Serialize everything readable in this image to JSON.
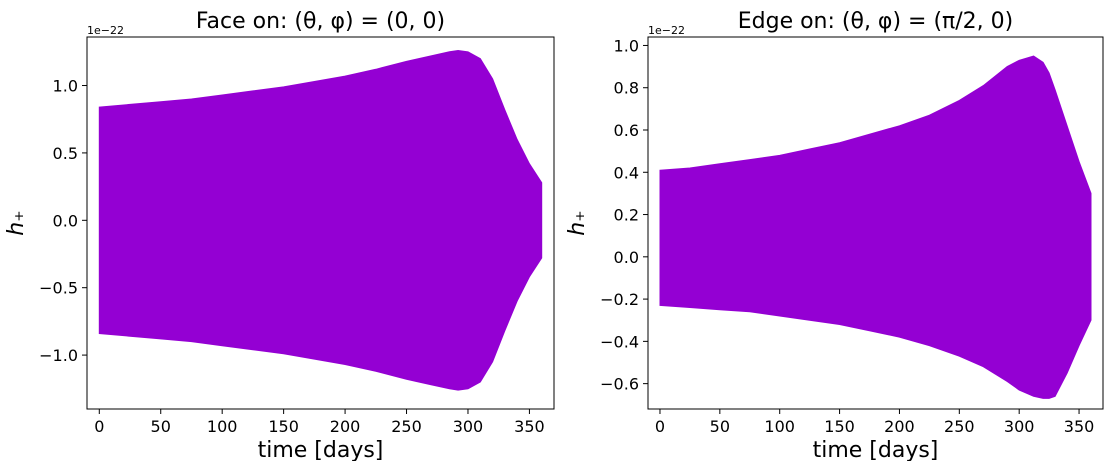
{
  "chart_data": [
    {
      "type": "area",
      "title": "Face on: (θ, φ) = (0, 0)",
      "xlabel": "time [days]",
      "ylabel": "h₊",
      "offset_text": "1e−22",
      "xlim": [
        -10,
        370
      ],
      "ylim": [
        -1.4,
        1.36
      ],
      "xticks": [
        0,
        50,
        100,
        150,
        200,
        250,
        300,
        350
      ],
      "xtick_labels": [
        "0",
        "50",
        "100",
        "150",
        "200",
        "250",
        "300",
        "350"
      ],
      "yticks": [
        -1.0,
        -0.5,
        0.0,
        0.5,
        1.0
      ],
      "ytick_labels": [
        "−1.0",
        "−0.5",
        "0.0",
        "0.5",
        "1.0"
      ],
      "color": "#9400d3",
      "grid": false,
      "series": [
        {
          "x": [
            0,
            25,
            50,
            75,
            100,
            125,
            150,
            175,
            200,
            225,
            250,
            270,
            285,
            292,
            300,
            310,
            320,
            330,
            340,
            350,
            360
          ],
          "upper": [
            0.84,
            0.86,
            0.88,
            0.9,
            0.93,
            0.96,
            0.99,
            1.03,
            1.07,
            1.12,
            1.18,
            1.22,
            1.25,
            1.26,
            1.25,
            1.2,
            1.05,
            0.82,
            0.6,
            0.42,
            0.28
          ],
          "lower": [
            -0.84,
            -0.86,
            -0.88,
            -0.9,
            -0.93,
            -0.96,
            -0.99,
            -1.03,
            -1.07,
            -1.12,
            -1.18,
            -1.22,
            -1.25,
            -1.26,
            -1.25,
            -1.2,
            -1.05,
            -0.82,
            -0.6,
            -0.42,
            -0.28
          ]
        }
      ]
    },
    {
      "type": "area",
      "title": "Edge on: (θ, φ) = (π/2, 0)",
      "xlabel": "time [days]",
      "ylabel": "h₊",
      "offset_text": "1e−22",
      "xlim": [
        -10,
        370
      ],
      "ylim": [
        -0.72,
        1.04
      ],
      "xticks": [
        0,
        50,
        100,
        150,
        200,
        250,
        300,
        350
      ],
      "xtick_labels": [
        "0",
        "50",
        "100",
        "150",
        "200",
        "250",
        "300",
        "350"
      ],
      "yticks": [
        -0.6,
        -0.4,
        -0.2,
        0.0,
        0.2,
        0.4,
        0.6,
        0.8,
        1.0
      ],
      "ytick_labels": [
        "−0.6",
        "−0.4",
        "−0.2",
        "0.0",
        "0.2",
        "0.4",
        "0.6",
        "0.8",
        "1.0"
      ],
      "color": "#9400d3",
      "grid": false,
      "series": [
        {
          "x": [
            0,
            25,
            50,
            75,
            100,
            125,
            150,
            175,
            200,
            225,
            250,
            270,
            290,
            300,
            312,
            320,
            325,
            330,
            340,
            350,
            360
          ],
          "upper": [
            0.41,
            0.42,
            0.44,
            0.46,
            0.48,
            0.51,
            0.54,
            0.58,
            0.62,
            0.67,
            0.74,
            0.81,
            0.9,
            0.93,
            0.95,
            0.92,
            0.87,
            0.79,
            0.62,
            0.45,
            0.3
          ],
          "lower": [
            -0.23,
            -0.24,
            -0.25,
            -0.26,
            -0.28,
            -0.3,
            -0.32,
            -0.35,
            -0.38,
            -0.42,
            -0.47,
            -0.52,
            -0.59,
            -0.63,
            -0.66,
            -0.67,
            -0.67,
            -0.66,
            -0.55,
            -0.42,
            -0.3
          ]
        }
      ]
    }
  ]
}
